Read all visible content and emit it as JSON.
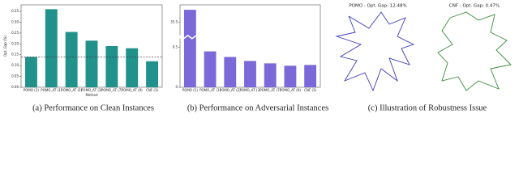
{
  "chart_data": [
    {
      "type": "bar",
      "xlabel": "Method",
      "ylabel": "Opt. Gap (%)",
      "categories": [
        "POMO (1)",
        "POMO_AT (1)",
        "POMO_AT (2)",
        "POMO_AT (3)",
        "POMO_AT (7)",
        "POMO_AT (9)",
        "CNF (3)"
      ],
      "values": [
        0.14,
        0.36,
        0.255,
        0.215,
        0.19,
        0.18,
        0.12
      ],
      "color": "#21918c",
      "reference_line": 0.14,
      "ylim": [
        0,
        0.38
      ],
      "yticks": [
        {
          "value": 0,
          "label": "0.00"
        },
        {
          "value": 0.05,
          "label": "0.05"
        },
        {
          "value": 0.1,
          "label": "0.10"
        },
        {
          "value": 0.15,
          "label": "0.15"
        },
        {
          "value": 0.2,
          "label": "0.20"
        },
        {
          "value": 0.25,
          "label": "0.25"
        },
        {
          "value": 0.3,
          "label": "0.30"
        },
        {
          "value": 0.35,
          "label": "0.35"
        }
      ]
    },
    {
      "type": "bar",
      "categories": [
        "POMO (1)",
        "POMO_AT (1)",
        "POMO_AT (2)",
        "POMO_AT (3)",
        "POMO_AT (7)",
        "POMO_AT (9)",
        "CNF (3)"
      ],
      "values": [
        36,
        0.45,
        0.38,
        0.33,
        0.3,
        0.27,
        0.28
      ],
      "color": "#7b68d9",
      "ylim": [
        0,
        36.2
      ],
      "y_break": [
        0.6,
        35
      ],
      "yticks": [
        0,
        0.5,
        35.5
      ]
    }
  ],
  "illustration": {
    "panels": [
      {
        "title": "POMO - Opt. Gap: 12.48%"
      },
      {
        "title": "CNF - Opt. Gap: 0.47%"
      }
    ]
  },
  "captions": [
    "(a) Performance on Clean Instances",
    "(b) Performance on Adversarial Instances",
    "(c) Illustration of Robustness Issue"
  ]
}
